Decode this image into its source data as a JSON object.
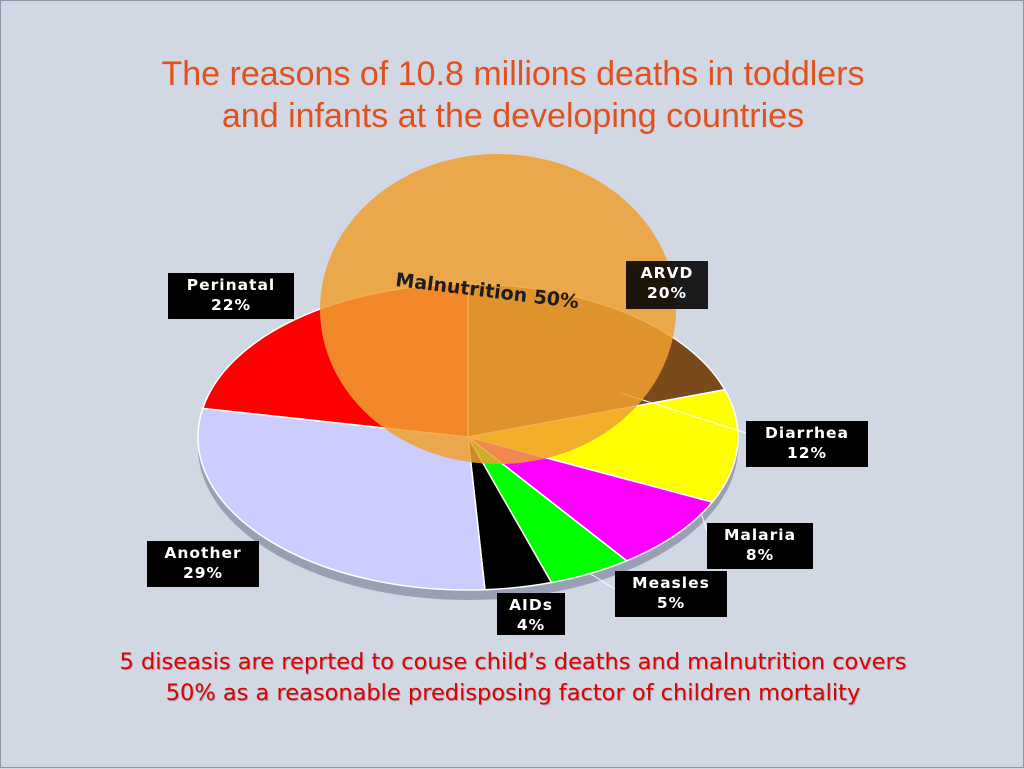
{
  "slide": {
    "title_line1": "The reasons of 10.8 millions deaths in toddlers",
    "title_line2": "and infants at the developing countries",
    "caption_line1": "5 diseasis are reprted to couse  child’s deaths and malnutrition covers",
    "caption_line2": "50% as a reasonable predisposing factor of children mortality"
  },
  "chart_data": {
    "type": "pie",
    "title": "The reasons of 10.8 millions deaths in toddlers and infants at the developing countries",
    "series": [
      {
        "slices": [
          {
            "name": "ARVD",
            "percent_label": "20%",
            "value": 20,
            "color": "#7a4a1c"
          },
          {
            "name": "Diarrhea",
            "percent_label": "12%",
            "value": 12,
            "color": "#ffff00"
          },
          {
            "name": "Malaria",
            "percent_label": "8%",
            "value": 8,
            "color": "#ff00ff"
          },
          {
            "name": "Measles",
            "percent_label": "5%",
            "value": 5,
            "color": "#00ff00"
          },
          {
            "name": "AIDs",
            "percent_label": "4%",
            "value": 4,
            "color": "#000000"
          },
          {
            "name": "Another",
            "percent_label": "29%",
            "value": 29,
            "color": "#ccccff"
          },
          {
            "name": "Perinatal",
            "percent_label": "22%",
            "value": 22,
            "color": "#ff0000"
          }
        ]
      }
    ],
    "overlay": {
      "label": "Malnutrition  50%",
      "value": 50,
      "color": "#f0a030"
    }
  }
}
